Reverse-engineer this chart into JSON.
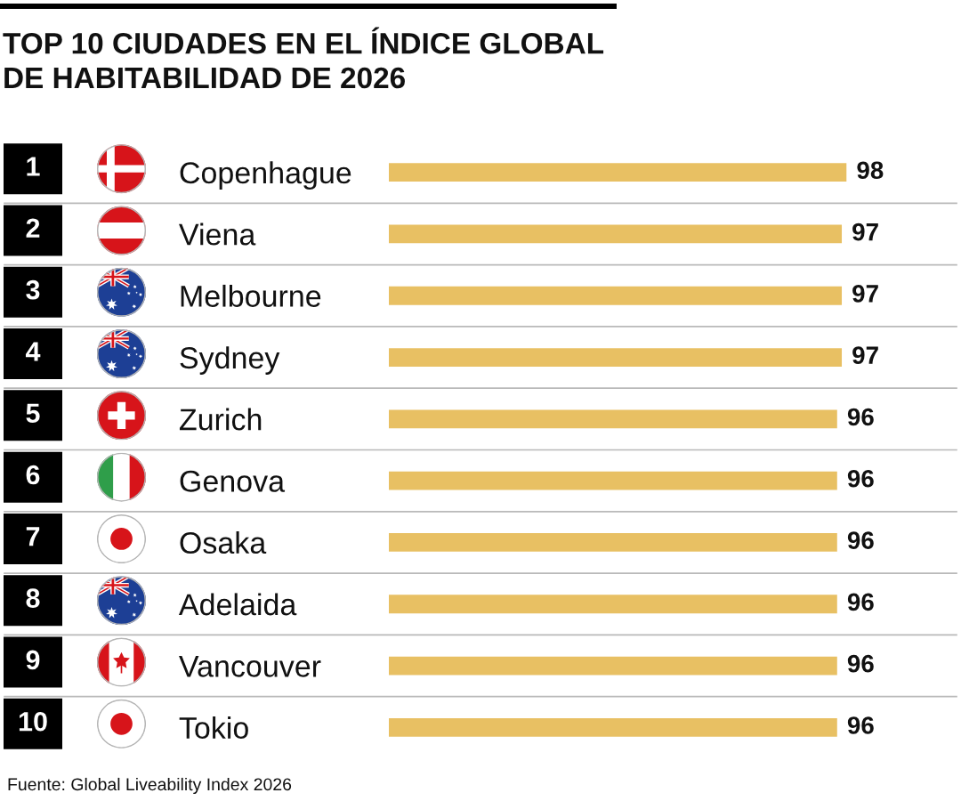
{
  "chart_data": {
    "type": "bar",
    "orientation": "horizontal",
    "title": "TOP 10 CIUDADES EN EL ÍNDICE GLOBAL\nDE HABITABILIDAD DE 2026",
    "categories": [
      "Copenhague",
      "Viena",
      "Melbourne",
      "Sydney",
      "Zurich",
      "Genova",
      "Osaka",
      "Adelaida",
      "Vancouver",
      "Tokio"
    ],
    "values": [
      98,
      97,
      97,
      97,
      96,
      96,
      96,
      96,
      96,
      96
    ],
    "color": "#e8c063",
    "tick_labels": "y",
    "data_labels": true,
    "annotations": [
      "1",
      "2",
      "3",
      "4",
      "5",
      "6",
      "7",
      "8",
      "9",
      "10",
      "Fuente: Global Liveability Index 2026"
    ]
  }
}
